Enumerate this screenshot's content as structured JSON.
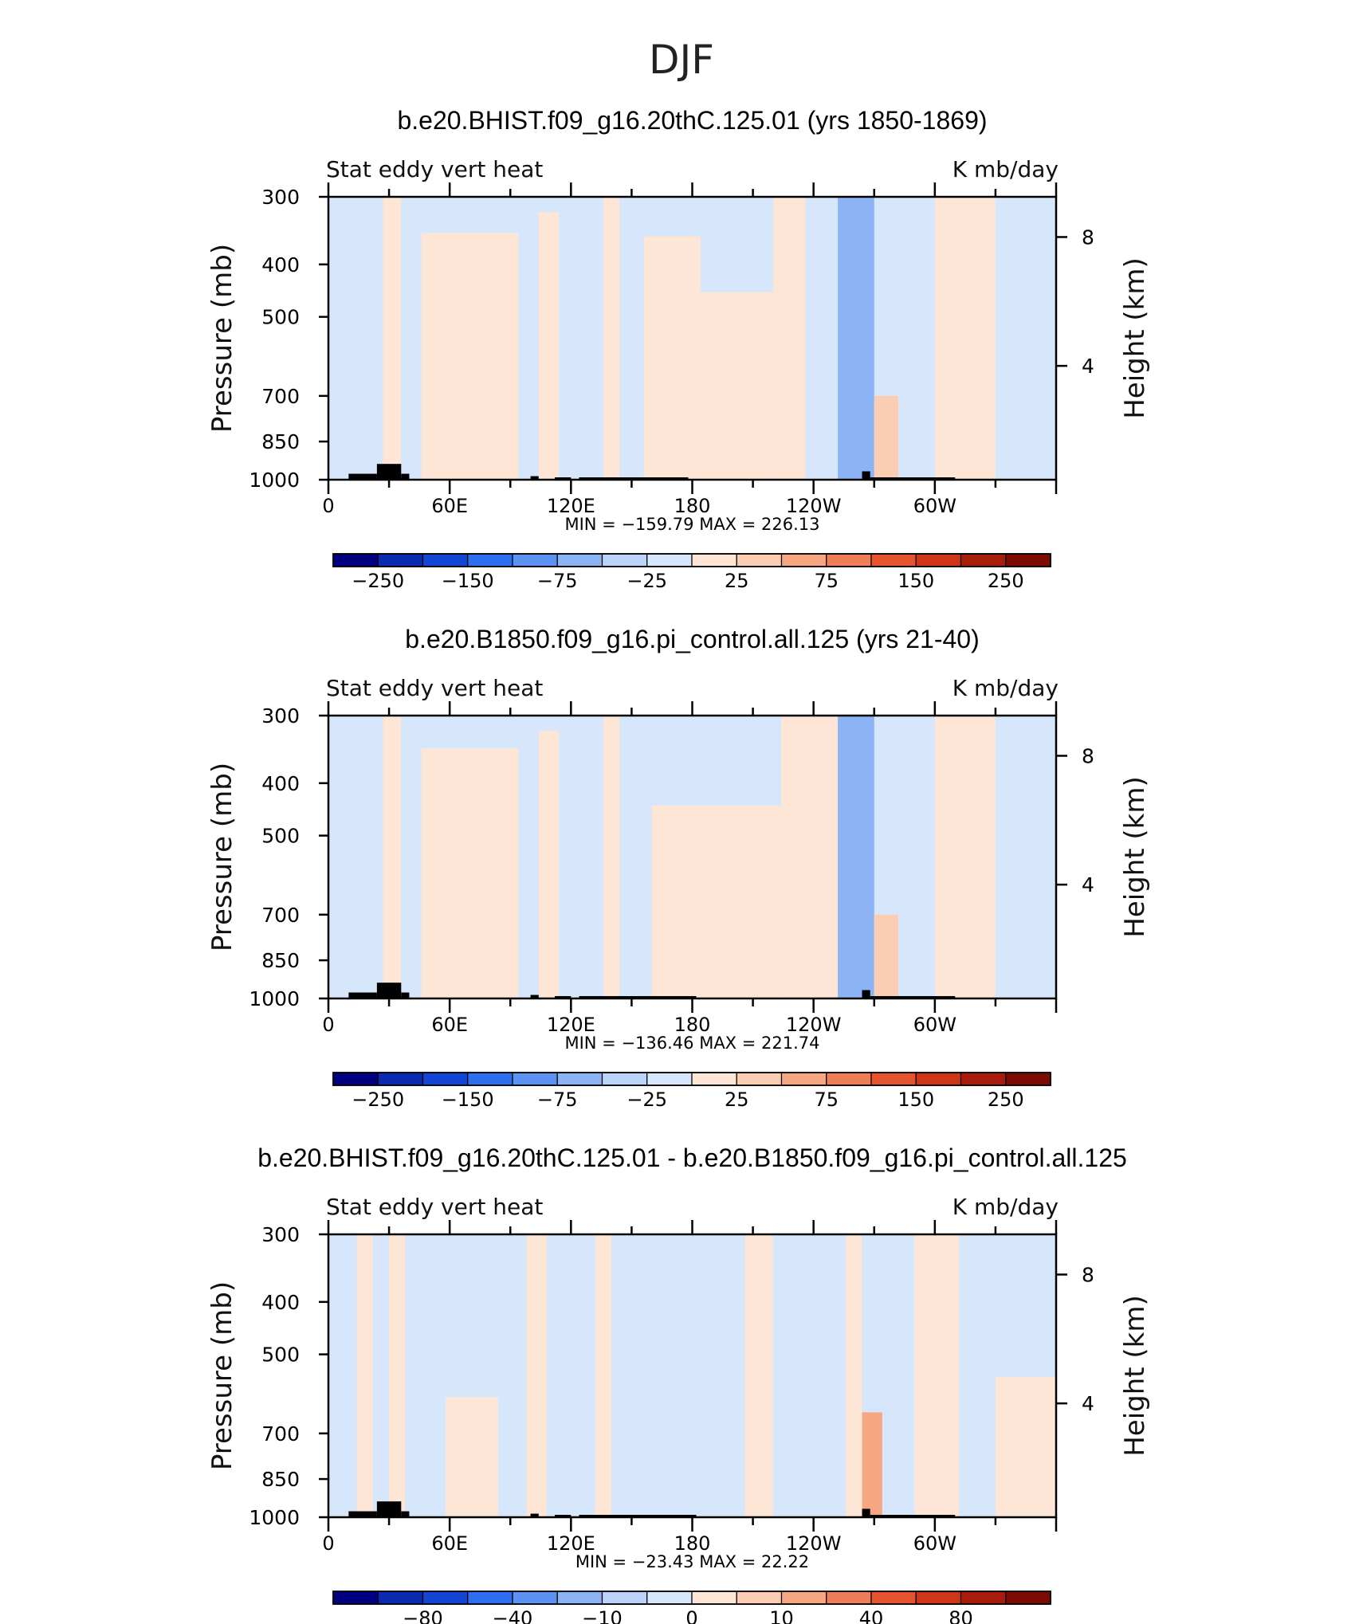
{
  "figure_title": "DJF",
  "chart_data": [
    {
      "type": "heatmap",
      "title": "b.e20.BHIST.f09_g16.20thC.125.01 (yrs 1850-1869)",
      "subtitle_left": "Stat eddy vert heat",
      "subtitle_right": "K mb/day",
      "xlabel": "",
      "ylabel": "Pressure (mb)",
      "ylabel_right": "Height (km)",
      "x_ticks": [
        "0",
        "60E",
        "120E",
        "180",
        "120W",
        "60W"
      ],
      "x_tick_values": [
        0,
        60,
        120,
        180,
        240,
        300
      ],
      "xlim": [
        0,
        360
      ],
      "y_ticks": [
        "300",
        "400",
        "500",
        "700",
        "850",
        "1000"
      ],
      "y_tick_values": [
        300,
        400,
        500,
        700,
        850,
        1000
      ],
      "ylim": [
        1000,
        300
      ],
      "right_ticks": [
        "8",
        "4"
      ],
      "right_tick_pressures": [
        356,
        616
      ],
      "stats": "MIN = −159.79   MAX = 226.13",
      "colorbar_labels": [
        "−250",
        "−150",
        "−75",
        "−25",
        "25",
        "75",
        "150",
        "250"
      ],
      "bands": [
        {
          "lon": [
            0,
            20
          ],
          "sign": -1,
          "level": 1,
          "top": 300
        },
        {
          "lon": [
            20,
            27
          ],
          "sign": -1,
          "level": 1,
          "top": 300
        },
        {
          "lon": [
            27,
            36
          ],
          "sign": 1,
          "level": 1,
          "top": 300
        },
        {
          "lon": [
            36,
            46
          ],
          "sign": -1,
          "level": 1,
          "top": 300
        },
        {
          "lon": [
            46,
            94
          ],
          "sign": 1,
          "level": 1,
          "top": 350
        },
        {
          "lon": [
            94,
            104
          ],
          "sign": -1,
          "level": 1,
          "top": 300
        },
        {
          "lon": [
            104,
            114
          ],
          "sign": 1,
          "level": 1,
          "top": 320
        },
        {
          "lon": [
            114,
            136
          ],
          "sign": -1,
          "level": 1,
          "top": 300
        },
        {
          "lon": [
            136,
            144
          ],
          "sign": 1,
          "level": 1,
          "top": 300
        },
        {
          "lon": [
            144,
            156
          ],
          "sign": -1,
          "level": 1,
          "top": 300
        },
        {
          "lon": [
            156,
            184
          ],
          "sign": 1,
          "level": 1,
          "top": 355
        },
        {
          "lon": [
            184,
            220
          ],
          "sign": 1,
          "level": 1,
          "top": 450
        },
        {
          "lon": [
            220,
            236
          ],
          "sign": 1,
          "level": 1,
          "top": 300
        },
        {
          "lon": [
            236,
            252
          ],
          "sign": -1,
          "level": 1,
          "top": 300
        },
        {
          "lon": [
            252,
            270
          ],
          "sign": -1,
          "level": 3,
          "top": 300
        },
        {
          "lon": [
            270,
            282
          ],
          "sign": 1,
          "level": 2,
          "top": 700
        },
        {
          "lon": [
            282,
            300
          ],
          "sign": -1,
          "level": 1,
          "top": 300
        },
        {
          "lon": [
            300,
            330
          ],
          "sign": 1,
          "level": 1,
          "top": 300
        },
        {
          "lon": [
            330,
            360
          ],
          "sign": -1,
          "level": 1,
          "top": 300
        }
      ],
      "topography": [
        {
          "lon": [
            10,
            24
          ],
          "p": 975
        },
        {
          "lon": [
            24,
            36
          ],
          "p": 935
        },
        {
          "lon": [
            36,
            40
          ],
          "p": 975
        },
        {
          "lon": [
            100,
            104
          ],
          "p": 985
        },
        {
          "lon": [
            112,
            120
          ],
          "p": 990
        },
        {
          "lon": [
            124,
            178
          ],
          "p": 990
        },
        {
          "lon": [
            264,
            268
          ],
          "p": 965
        },
        {
          "lon": [
            268,
            310
          ],
          "p": 990
        }
      ]
    },
    {
      "type": "heatmap",
      "title": "b.e20.B1850.f09_g16.pi_control.all.125 (yrs 21-40)",
      "subtitle_left": "Stat eddy vert heat",
      "subtitle_right": "K mb/day",
      "xlabel": "",
      "ylabel": "Pressure (mb)",
      "ylabel_right": "Height (km)",
      "x_ticks": [
        "0",
        "60E",
        "120E",
        "180",
        "120W",
        "60W"
      ],
      "x_tick_values": [
        0,
        60,
        120,
        180,
        240,
        300
      ],
      "xlim": [
        0,
        360
      ],
      "y_ticks": [
        "300",
        "400",
        "500",
        "700",
        "850",
        "1000"
      ],
      "y_tick_values": [
        300,
        400,
        500,
        700,
        850,
        1000
      ],
      "ylim": [
        1000,
        300
      ],
      "right_ticks": [
        "8",
        "4"
      ],
      "right_tick_pressures": [
        356,
        616
      ],
      "stats": "MIN = −136.46   MAX = 221.74",
      "colorbar_labels": [
        "−250",
        "−150",
        "−75",
        "−25",
        "25",
        "75",
        "150",
        "250"
      ],
      "bands": [
        {
          "lon": [
            0,
            20
          ],
          "sign": -1,
          "level": 1,
          "top": 300
        },
        {
          "lon": [
            20,
            27
          ],
          "sign": -1,
          "level": 1,
          "top": 300
        },
        {
          "lon": [
            27,
            36
          ],
          "sign": 1,
          "level": 1,
          "top": 300
        },
        {
          "lon": [
            36,
            46
          ],
          "sign": -1,
          "level": 1,
          "top": 300
        },
        {
          "lon": [
            46,
            94
          ],
          "sign": 1,
          "level": 1,
          "top": 345
        },
        {
          "lon": [
            94,
            104
          ],
          "sign": -1,
          "level": 1,
          "top": 300
        },
        {
          "lon": [
            104,
            114
          ],
          "sign": 1,
          "level": 1,
          "top": 320
        },
        {
          "lon": [
            114,
            136
          ],
          "sign": -1,
          "level": 1,
          "top": 300
        },
        {
          "lon": [
            136,
            144
          ],
          "sign": 1,
          "level": 1,
          "top": 300
        },
        {
          "lon": [
            144,
            160
          ],
          "sign": -1,
          "level": 1,
          "top": 300
        },
        {
          "lon": [
            160,
            224
          ],
          "sign": 1,
          "level": 1,
          "top": 440
        },
        {
          "lon": [
            224,
            252
          ],
          "sign": 1,
          "level": 1,
          "top": 300
        },
        {
          "lon": [
            252,
            270
          ],
          "sign": -1,
          "level": 3,
          "top": 300
        },
        {
          "lon": [
            270,
            282
          ],
          "sign": 1,
          "level": 2,
          "top": 700
        },
        {
          "lon": [
            282,
            300
          ],
          "sign": -1,
          "level": 1,
          "top": 300
        },
        {
          "lon": [
            300,
            330
          ],
          "sign": 1,
          "level": 1,
          "top": 300
        },
        {
          "lon": [
            330,
            360
          ],
          "sign": -1,
          "level": 1,
          "top": 300
        }
      ],
      "topography": [
        {
          "lon": [
            10,
            24
          ],
          "p": 975
        },
        {
          "lon": [
            24,
            36
          ],
          "p": 935
        },
        {
          "lon": [
            36,
            40
          ],
          "p": 975
        },
        {
          "lon": [
            100,
            104
          ],
          "p": 985
        },
        {
          "lon": [
            112,
            120
          ],
          "p": 990
        },
        {
          "lon": [
            124,
            182
          ],
          "p": 990
        },
        {
          "lon": [
            264,
            268
          ],
          "p": 965
        },
        {
          "lon": [
            268,
            310
          ],
          "p": 990
        }
      ]
    },
    {
      "type": "heatmap",
      "title": "b.e20.BHIST.f09_g16.20thC.125.01 - b.e20.B1850.f09_g16.pi_control.all.125",
      "subtitle_left": "Stat eddy vert heat",
      "subtitle_right": "K mb/day",
      "xlabel": "",
      "ylabel": "Pressure (mb)",
      "ylabel_right": "Height (km)",
      "x_ticks": [
        "0",
        "60E",
        "120E",
        "180",
        "120W",
        "60W"
      ],
      "x_tick_values": [
        0,
        60,
        120,
        180,
        240,
        300
      ],
      "xlim": [
        0,
        360
      ],
      "y_ticks": [
        "300",
        "400",
        "500",
        "700",
        "850",
        "1000"
      ],
      "y_tick_values": [
        300,
        400,
        500,
        700,
        850,
        1000
      ],
      "ylim": [
        1000,
        300
      ],
      "right_ticks": [
        "8",
        "4"
      ],
      "right_tick_pressures": [
        356,
        616
      ],
      "stats": "MIN = −23.43   MAX =   22.22",
      "colorbar_labels": [
        "−80",
        "−40",
        "−10",
        "0",
        "10",
        "40",
        "80"
      ],
      "bands": [
        {
          "lon": [
            0,
            14
          ],
          "sign": -1,
          "level": 1,
          "top": 300
        },
        {
          "lon": [
            14,
            22
          ],
          "sign": 1,
          "level": 1,
          "top": 300
        },
        {
          "lon": [
            22,
            30
          ],
          "sign": -1,
          "level": 1,
          "top": 300
        },
        {
          "lon": [
            30,
            38
          ],
          "sign": 1,
          "level": 1,
          "top": 300
        },
        {
          "lon": [
            38,
            58
          ],
          "sign": -1,
          "level": 1,
          "top": 300
        },
        {
          "lon": [
            58,
            84
          ],
          "sign": 1,
          "level": 1,
          "top": 600
        },
        {
          "lon": [
            84,
            98
          ],
          "sign": -1,
          "level": 1,
          "top": 300
        },
        {
          "lon": [
            98,
            108
          ],
          "sign": 1,
          "level": 1,
          "top": 300
        },
        {
          "lon": [
            108,
            132
          ],
          "sign": -1,
          "level": 1,
          "top": 300
        },
        {
          "lon": [
            132,
            140
          ],
          "sign": 1,
          "level": 1,
          "top": 300
        },
        {
          "lon": [
            140,
            206
          ],
          "sign": -1,
          "level": 1,
          "top": 300
        },
        {
          "lon": [
            206,
            220
          ],
          "sign": 1,
          "level": 1,
          "top": 300
        },
        {
          "lon": [
            220,
            256
          ],
          "sign": -1,
          "level": 1,
          "top": 300
        },
        {
          "lon": [
            256,
            264
          ],
          "sign": 1,
          "level": 1,
          "top": 300
        },
        {
          "lon": [
            264,
            274
          ],
          "sign": 1,
          "level": 3,
          "top": 640
        },
        {
          "lon": [
            274,
            290
          ],
          "sign": -1,
          "level": 1,
          "top": 300
        },
        {
          "lon": [
            290,
            312
          ],
          "sign": 1,
          "level": 1,
          "top": 300
        },
        {
          "lon": [
            312,
            330
          ],
          "sign": -1,
          "level": 1,
          "top": 300
        },
        {
          "lon": [
            330,
            360
          ],
          "sign": 1,
          "level": 1,
          "top": 550
        }
      ],
      "topography": [
        {
          "lon": [
            10,
            24
          ],
          "p": 975
        },
        {
          "lon": [
            24,
            36
          ],
          "p": 935
        },
        {
          "lon": [
            36,
            40
          ],
          "p": 975
        },
        {
          "lon": [
            100,
            104
          ],
          "p": 985
        },
        {
          "lon": [
            112,
            120
          ],
          "p": 990
        },
        {
          "lon": [
            124,
            182
          ],
          "p": 990
        },
        {
          "lon": [
            264,
            268
          ],
          "p": 965
        },
        {
          "lon": [
            268,
            310
          ],
          "p": 990
        }
      ]
    }
  ],
  "colors": {
    "palette": [
      "#000080",
      "#0b2ab2",
      "#1446d6",
      "#2d6ff0",
      "#5c93f2",
      "#8cb4f5",
      "#bbd3f8",
      "#d7e7fb",
      "#fde6d6",
      "#fbcdb3",
      "#f6a681",
      "#ef7d57",
      "#e5532f",
      "#cf3517",
      "#a81c0c",
      "#7d0a03"
    ],
    "topography": "#000000"
  }
}
